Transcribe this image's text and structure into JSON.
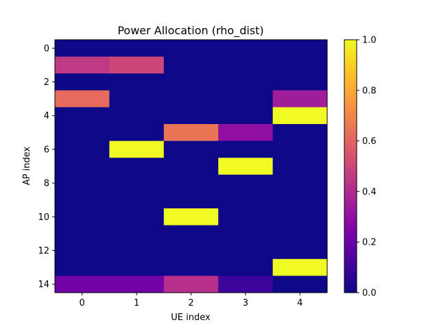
{
  "chart_data": {
    "type": "heatmap",
    "title": "Power Allocation (rho_dist)",
    "xlabel": "UE index",
    "ylabel": "AP index",
    "x_ticks": [
      "0",
      "1",
      "2",
      "3",
      "4"
    ],
    "y_ticks": [
      "0",
      "2",
      "4",
      "6",
      "8",
      "10",
      "12",
      "14"
    ],
    "colormap": "plasma",
    "clim": [
      0.0,
      1.0
    ],
    "colorbar_ticks": [
      "0.0",
      "0.2",
      "0.4",
      "0.6",
      "0.8",
      "1.0"
    ],
    "rows": 15,
    "cols": 5,
    "values": [
      [
        0,
        0,
        0,
        0,
        0
      ],
      [
        0.45,
        0.5,
        0,
        0,
        0
      ],
      [
        0,
        0,
        0,
        0,
        0
      ],
      [
        0.62,
        0,
        0,
        0,
        0.35
      ],
      [
        0,
        0,
        0,
        0,
        1.0
      ],
      [
        0,
        0,
        0.65,
        0.3,
        0
      ],
      [
        0,
        1.0,
        0,
        0,
        0
      ],
      [
        0,
        0,
        0,
        1.0,
        0
      ],
      [
        0,
        0,
        0,
        0,
        0
      ],
      [
        0,
        0,
        0,
        0,
        0
      ],
      [
        0,
        0,
        1.0,
        0,
        0
      ],
      [
        0,
        0,
        0,
        0,
        0
      ],
      [
        0,
        0,
        0,
        0,
        0
      ],
      [
        0,
        0,
        0,
        0,
        1.0
      ],
      [
        0.22,
        0.22,
        0.42,
        0.1,
        0
      ]
    ]
  }
}
